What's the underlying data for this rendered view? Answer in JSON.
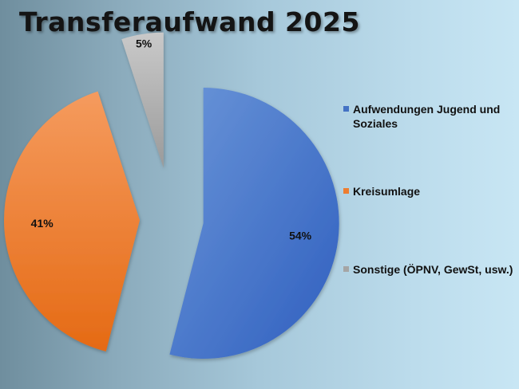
{
  "chart_data": {
    "type": "pie",
    "title": "Transferaufwand 2025",
    "slices": [
      {
        "label": "Aufwendungen Jugend und Soziales",
        "value": 54,
        "value_label": "54%",
        "color": "#4472c4"
      },
      {
        "label": "Kreisumlage",
        "value": 41,
        "value_label": "41%",
        "color": "#ed7d31"
      },
      {
        "label": "Sonstige (ÖPNV, GewSt, usw.)",
        "value": 5,
        "value_label": "5%",
        "color": "#a5a5a5"
      }
    ],
    "exploded": true,
    "legend_position": "right"
  }
}
